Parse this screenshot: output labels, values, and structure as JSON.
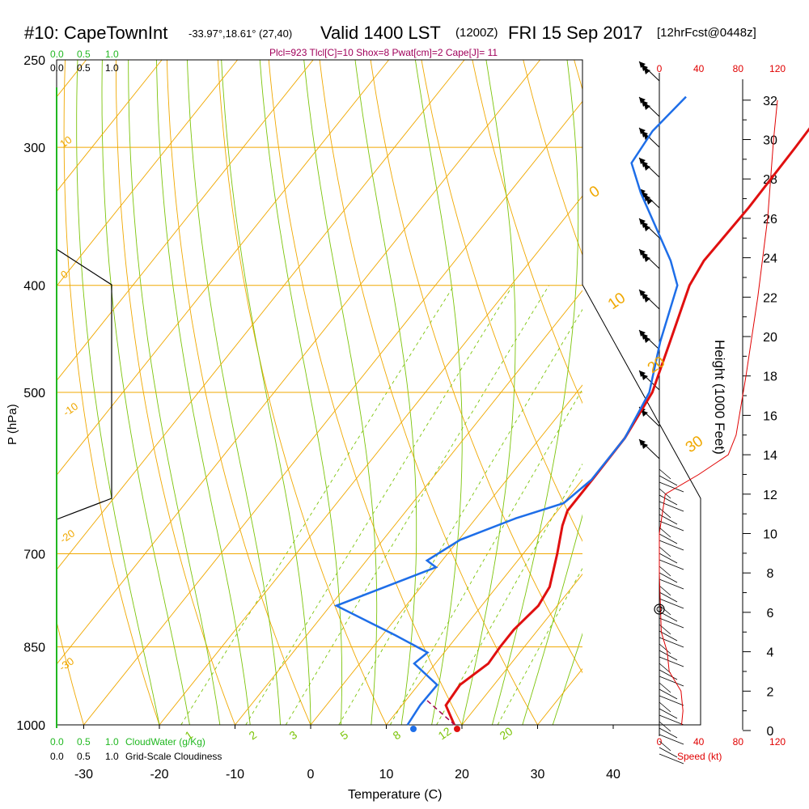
{
  "header": {
    "station": "#10: CapeTownInt",
    "location": "-33.97°,18.61° (27,40)",
    "valid": "Valid 1400 LST",
    "zulu": "(1200Z)",
    "date": "FRI 15 Sep 2017",
    "forecast": "[12hrFcst@0448z]",
    "indices": "Plcl=923 Tlcl[C]=10 Shox=8 Pwat[cm]=2 Cape[J]= 11"
  },
  "chart_data": {
    "type": "skew-t",
    "xlabel": "Temperature (C)",
    "ylabel": "P (hPa)",
    "right_axis_label": "Height (1000 Feet)",
    "speed_axis_label": "Speed (kt)",
    "cloudwater_label": "CloudWater (g/Kg)",
    "cloudiness_label": "Grid-Scale Cloudiness",
    "x_ticks": [
      "-30",
      "-20",
      "-10",
      "0",
      "10",
      "20",
      "30",
      "40"
    ],
    "xlim": [
      -34,
      36
    ],
    "pressure_ticks": [
      "250",
      "300",
      "400",
      "500",
      "700",
      "850",
      "1000"
    ],
    "height_ticks": [
      "0",
      "2",
      "4",
      "6",
      "8",
      "10",
      "12",
      "14",
      "16",
      "18",
      "20",
      "22",
      "24",
      "26",
      "28",
      "30",
      "32"
    ],
    "speed_ticks": [
      "0",
      "40",
      "80",
      "120"
    ],
    "cloudwater_ticks": [
      "0.0",
      "0.5",
      "1.0"
    ],
    "cloudiness_ticks": [
      "0.0",
      "0.5",
      "1.0"
    ],
    "isotherm_labels": [
      "10",
      "0",
      "-10",
      "-20",
      "-30",
      "0",
      "10",
      "20",
      "30"
    ],
    "mixing_ratio_labels": [
      "1",
      "2",
      "3",
      "5",
      "8",
      "12",
      "20"
    ],
    "temperature_profile": [
      {
        "p": 270,
        "t": 2.7
      },
      {
        "p": 300,
        "t": 3.0
      },
      {
        "p": 340,
        "t": 3.2
      },
      {
        "p": 380,
        "t": 2.9
      },
      {
        "p": 400,
        "t": 3.6
      },
      {
        "p": 450,
        "t": 7.0
      },
      {
        "p": 500,
        "t": 10.0
      },
      {
        "p": 550,
        "t": 11.2
      },
      {
        "p": 600,
        "t": 11.3
      },
      {
        "p": 640,
        "t": 11.3
      },
      {
        "p": 660,
        "t": 12.2
      },
      {
        "p": 700,
        "t": 14.5
      },
      {
        "p": 750,
        "t": 17.0
      },
      {
        "p": 780,
        "t": 17.5
      },
      {
        "p": 820,
        "t": 16.8
      },
      {
        "p": 850,
        "t": 16.8
      },
      {
        "p": 880,
        "t": 17.0
      },
      {
        "p": 920,
        "t": 15.5
      },
      {
        "p": 960,
        "t": 15.8
      },
      {
        "p": 1000,
        "t": 19.0
      }
    ],
    "dewpoint_profile": [
      {
        "p": 270,
        "t": -16.8
      },
      {
        "p": 290,
        "t": -17.6
      },
      {
        "p": 310,
        "t": -17.0
      },
      {
        "p": 330,
        "t": -12.6
      },
      {
        "p": 380,
        "t": -1.5
      },
      {
        "p": 400,
        "t": 2.0
      },
      {
        "p": 450,
        "t": 5.7
      },
      {
        "p": 500,
        "t": 9.6
      },
      {
        "p": 550,
        "t": 11.2
      },
      {
        "p": 600,
        "t": 11.2
      },
      {
        "p": 630,
        "t": 10.0
      },
      {
        "p": 650,
        "t": 5.3
      },
      {
        "p": 680,
        "t": 0.2
      },
      {
        "p": 710,
        "t": -2.0
      },
      {
        "p": 720,
        "t": -0.1
      },
      {
        "p": 780,
        "t": -9.2
      },
      {
        "p": 830,
        "t": 1.8
      },
      {
        "p": 860,
        "t": 7.8
      },
      {
        "p": 880,
        "t": 7.2
      },
      {
        "p": 920,
        "t": 12.5
      },
      {
        "p": 960,
        "t": 12.4
      },
      {
        "p": 1000,
        "t": 12.8
      }
    ],
    "surface": {
      "t": 19.5,
      "td": 13.6
    },
    "height_profile": [
      {
        "h": 0,
        "v": 22
      },
      {
        "h": 1,
        "v": 24
      },
      {
        "h": 2,
        "v": 22
      },
      {
        "h": 3,
        "v": 10
      },
      {
        "h": 4,
        "v": 8
      },
      {
        "h": 5,
        "v": 2
      },
      {
        "h": 8,
        "v": 0
      },
      {
        "h": 10,
        "v": 0
      },
      {
        "h": 12,
        "v": 6
      },
      {
        "h": 13,
        "v": 40
      },
      {
        "h": 14,
        "v": 70
      },
      {
        "h": 15,
        "v": 78
      },
      {
        "h": 18,
        "v": 88
      },
      {
        "h": 22,
        "v": 100
      },
      {
        "h": 26,
        "v": 110
      },
      {
        "h": 30,
        "v": 116
      },
      {
        "h": 32,
        "v": 120
      }
    ]
  }
}
